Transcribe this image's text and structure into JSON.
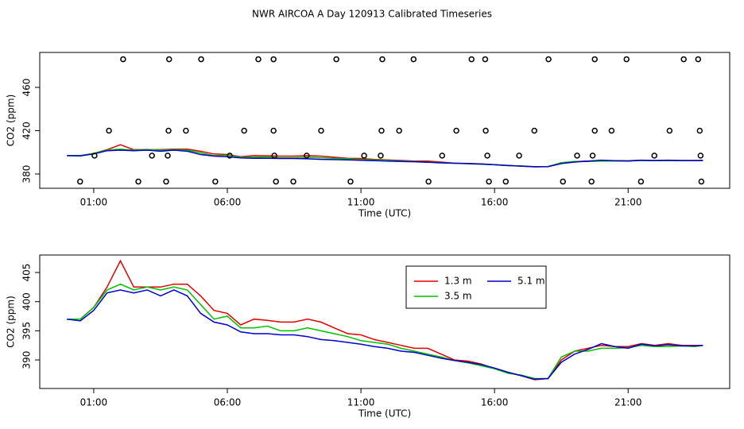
{
  "title": "NWR AIRCOA A  Day 120913  Calibrated Timeseries",
  "chart_data": [
    {
      "type": "scatter",
      "xlabel": "Time (UTC)",
      "ylabel": "CO2 (ppm)",
      "xlim": [
        -1.02,
        24.8
      ],
      "ylim": [
        366.8,
        492.3
      ],
      "xticks": [
        {
          "value": 1,
          "label": "01:00"
        },
        {
          "value": 6,
          "label": "06:00"
        },
        {
          "value": 11,
          "label": "11:00"
        },
        {
          "value": 16,
          "label": "16:00"
        },
        {
          "value": 21,
          "label": "21:00"
        }
      ],
      "yticks": [
        380,
        420,
        460
      ],
      "color": "#000000",
      "x": [
        2.1,
        3.82,
        5.02,
        7.16,
        7.73,
        10.08,
        11.8,
        12.97,
        15.14,
        15.65,
        18.02,
        19.75,
        20.94,
        23.08,
        23.62,
        1.57,
        3.8,
        4.45,
        6.63,
        7.73,
        9.51,
        11.77,
        12.43,
        14.57,
        15.67,
        17.49,
        19.75,
        20.38,
        22.55,
        23.68,
        1.03,
        3.18,
        3.77,
        6.09,
        7.76,
        8.97,
        11.12,
        11.74,
        14.04,
        15.73,
        16.92,
        19.09,
        19.67,
        21.98,
        23.71,
        0.49,
        2.67,
        3.71,
        5.55,
        7.82,
        8.47,
        10.61,
        13.53,
        15.79,
        16.42,
        18.56,
        19.63,
        21.48,
        23.74
      ],
      "y": [
        486,
        486,
        486,
        486,
        486,
        486,
        486,
        486,
        486,
        486,
        486,
        486,
        486,
        486,
        486,
        420,
        420,
        420,
        420,
        420,
        420,
        420,
        420,
        420,
        420,
        420,
        420,
        420,
        420,
        420,
        397,
        397,
        397,
        397,
        397,
        397,
        397,
        397,
        397,
        397,
        397,
        397,
        397,
        397,
        397,
        373,
        373,
        373,
        373,
        373,
        373,
        373,
        373,
        373,
        373,
        373,
        373,
        373,
        373
      ]
    },
    {
      "type": "line",
      "xlabel": "Time (UTC)",
      "ylabel": "CO2 (ppm)",
      "xlim": [
        -1.02,
        24.8
      ],
      "ylim": [
        385.1,
        408.0
      ],
      "xticks": [
        {
          "value": 1,
          "label": "01:00"
        },
        {
          "value": 6,
          "label": "06:00"
        },
        {
          "value": 11,
          "label": "11:00"
        },
        {
          "value": 16,
          "label": "16:00"
        },
        {
          "value": 21,
          "label": "21:00"
        }
      ],
      "yticks": [
        390,
        395,
        400,
        405
      ],
      "legend": "top-center",
      "x": [
        0,
        0.5,
        1,
        1.5,
        2,
        2.5,
        3,
        3.5,
        4,
        4.5,
        5,
        5.5,
        6,
        6.5,
        7,
        7.5,
        8,
        8.5,
        9,
        9.5,
        10,
        10.5,
        11,
        11.5,
        12,
        12.5,
        13,
        13.5,
        14,
        14.5,
        15,
        15.5,
        16,
        16.5,
        17,
        17.5,
        18,
        18.5,
        19,
        19.5,
        20,
        20.5,
        21,
        21.5,
        22,
        22.5,
        23,
        23.5,
        23.8
      ],
      "series": [
        {
          "name": "1.3 m",
          "color": "#e00000",
          "values": [
            397,
            397,
            399,
            402.5,
            407,
            402.5,
            402.5,
            402.5,
            403,
            403,
            401,
            398.5,
            398,
            396,
            397,
            396.8,
            396.5,
            396.5,
            397,
            396.5,
            395.5,
            394.5,
            394.3,
            393.5,
            393,
            392.5,
            392,
            392,
            391,
            390,
            389.8,
            389.3,
            388.5,
            387.8,
            387.3,
            386.6,
            386.8,
            390,
            391.5,
            392,
            392.5,
            392.3,
            392.3,
            392.8,
            392.5,
            392.8,
            392.5,
            392.5,
            392.5
          ]
        },
        {
          "name": "3.5 m",
          "color": "#00c000",
          "values": [
            397,
            397,
            399,
            402,
            403,
            402,
            402.5,
            402,
            402.5,
            402,
            399.5,
            397,
            397.5,
            395.5,
            395.5,
            395.8,
            395,
            395,
            395.5,
            395,
            394.5,
            394,
            393.3,
            393,
            392.7,
            392,
            391.5,
            391,
            390.5,
            389.9,
            389.5,
            389,
            388.5,
            387.7,
            387.4,
            386.8,
            386.8,
            390.5,
            391.5,
            391.5,
            392,
            392,
            392.1,
            392.5,
            392.3,
            392.3,
            392.4,
            392.3,
            392.5
          ]
        },
        {
          "name": "5.1 m",
          "color": "#0000cc",
          "values": [
            397,
            396.7,
            398.5,
            401.5,
            402,
            401.5,
            402,
            401,
            402,
            401,
            398,
            396.5,
            396,
            394.8,
            394.5,
            394.5,
            394.3,
            394.3,
            394,
            393.5,
            393.3,
            393,
            392.7,
            392.3,
            392,
            391.5,
            391.3,
            390.8,
            390.3,
            389.9,
            389.6,
            389.2,
            388.6,
            387.9,
            387.3,
            386.7,
            386.8,
            389.6,
            391,
            391.8,
            392.8,
            392.3,
            392,
            392.7,
            392.4,
            392.6,
            392.4,
            392.4,
            392.5
          ]
        }
      ]
    }
  ]
}
